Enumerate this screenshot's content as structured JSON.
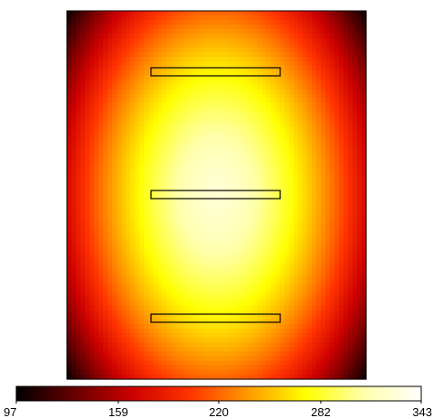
{
  "chart_data": {
    "type": "heatmap",
    "title": "",
    "xlabel": "",
    "ylabel": "",
    "value_range": [
      97,
      343
    ],
    "colormap": "hot",
    "colorbar": {
      "orientation": "horizontal",
      "placement": "bottom",
      "ticks": [
        {
          "value": 97,
          "label": "97"
        },
        {
          "value": 159,
          "label": "159"
        },
        {
          "value": 220,
          "label": "220"
        },
        {
          "value": 282,
          "label": "282"
        },
        {
          "value": 343,
          "label": "343"
        }
      ],
      "colors": [
        "#000000",
        "#660000",
        "#cc0000",
        "#ff3300",
        "#ff9900",
        "#ffff00",
        "#ffffaa",
        "#ffffff"
      ]
    },
    "field": {
      "description_of_shape": "elliptical hot region centered in a rectangular domain",
      "center_value": 325,
      "edge_mid_value": 205,
      "corner_value": 100
    },
    "inclusions": [
      {
        "name": "top plate"
      },
      {
        "name": "middle plate"
      },
      {
        "name": "bottom plate"
      }
    ]
  }
}
